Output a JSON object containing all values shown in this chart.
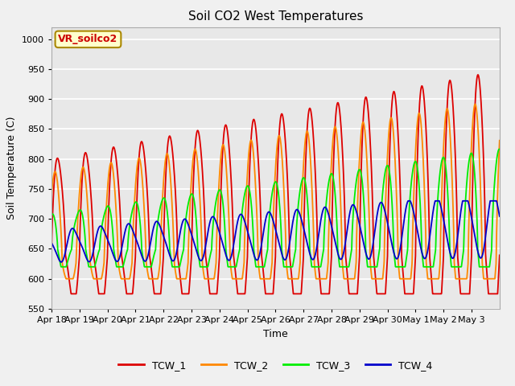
{
  "title": "Soil CO2 West Temperatures",
  "xlabel": "Time",
  "ylabel": "Soil Temperature (C)",
  "ylim": [
    550,
    1020
  ],
  "yticks": [
    550,
    600,
    650,
    700,
    750,
    800,
    850,
    900,
    950,
    1000
  ],
  "annotation": "VR_soilco2",
  "fig_facecolor": "#f0f0f0",
  "plot_facecolor": "#e8e8e8",
  "grid_color": "white",
  "series": {
    "TCW_1": {
      "color": "#dd0000",
      "lw": 1.3
    },
    "TCW_2": {
      "color": "#ff8800",
      "lw": 1.3
    },
    "TCW_3": {
      "color": "#00ee00",
      "lw": 1.3
    },
    "TCW_4": {
      "color": "#0000cc",
      "lw": 1.3
    }
  },
  "x_tick_labels": [
    "Apr 18",
    "Apr 19",
    "Apr 20",
    "Apr 21",
    "Apr 22",
    "Apr 23",
    "Apr 24",
    "Apr 25",
    "Apr 26",
    "Apr 27",
    "Apr 28",
    "Apr 29",
    "Apr 30",
    "May 1",
    "May 2",
    "May 3"
  ],
  "n_days": 16,
  "points_per_day": 144
}
